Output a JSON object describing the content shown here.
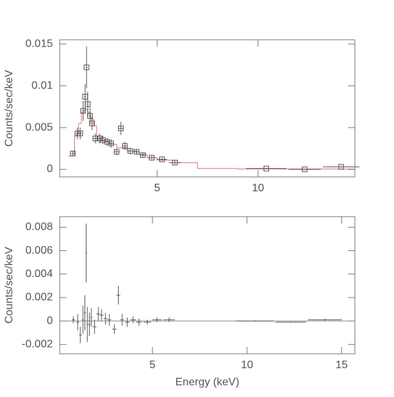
{
  "chart_data": [
    {
      "type": "errorbar",
      "ylabel": "Counts/sec/keV",
      "xlim": [
        0.17,
        14.8
      ],
      "ylim": [
        -0.0009,
        0.0155
      ],
      "xticks": [
        5,
        10
      ],
      "yticks": [
        0,
        0.005,
        0.01,
        0.015
      ],
      "marker": "square",
      "color": "#555555",
      "x": [
        0.82,
        1.05,
        1.19,
        1.33,
        1.43,
        1.5,
        1.56,
        1.67,
        1.77,
        1.94,
        2.14,
        2.31,
        2.52,
        2.72,
        2.99,
        3.2,
        3.4,
        3.67,
        3.98,
        4.29,
        4.73,
        5.24,
        5.88,
        10.41,
        12.31,
        14.12
      ],
      "xerr": [
        0.08,
        0.07,
        0.07,
        0.05,
        0.05,
        0.04,
        0.04,
        0.05,
        0.05,
        0.1,
        0.1,
        0.1,
        0.1,
        0.1,
        0.12,
        0.1,
        0.1,
        0.12,
        0.15,
        0.15,
        0.2,
        0.25,
        0.3,
        1.0,
        0.8,
        0.9
      ],
      "values": [
        0.0019,
        0.0043,
        0.0043,
        0.007,
        0.0087,
        0.0122,
        0.0078,
        0.0064,
        0.0055,
        0.0037,
        0.0037,
        0.0035,
        0.0033,
        0.0031,
        0.0021,
        0.0049,
        0.0028,
        0.0022,
        0.0021,
        0.0017,
        0.0014,
        0.0012,
        0.0008,
        0.0001,
        0.0,
        0.0003
      ],
      "errors": [
        0.0003,
        0.0007,
        0.0007,
        0.0012,
        0.0015,
        0.0025,
        0.0015,
        0.001,
        0.0008,
        0.0006,
        0.0006,
        0.0005,
        0.0005,
        0.0005,
        0.0004,
        0.0008,
        0.0005,
        0.0004,
        0.0003,
        0.0003,
        0.0002,
        0.0002,
        0.0002,
        5e-05,
        5e-05,
        0.0001
      ],
      "model": {
        "color": "#e07070",
        "edges": [
          0.6,
          0.9,
          1.0,
          1.1,
          1.25,
          1.4,
          1.55,
          1.7,
          1.85,
          2.0,
          2.3,
          2.6,
          3.0,
          3.5,
          4.0,
          4.5,
          5.0,
          6.0,
          7.0,
          9.0,
          14.8
        ],
        "values": [
          0.0016,
          0.004,
          0.0043,
          0.0055,
          0.0068,
          0.0072,
          0.0068,
          0.006,
          0.0052,
          0.004,
          0.0034,
          0.003,
          0.0026,
          0.0022,
          0.0018,
          0.0014,
          0.0011,
          0.0008,
          0.0001,
          5e-05
        ]
      }
    },
    {
      "type": "errorbar",
      "ylabel": "Counts/sec/keV",
      "xlabel": "Energy (keV)",
      "xlim": [
        0.1,
        15.7
      ],
      "ylim": [
        -0.0028,
        0.0089
      ],
      "xticks": [
        5,
        10,
        15
      ],
      "yticks": [
        -0.002,
        0,
        0.002,
        0.004,
        0.006,
        0.008
      ],
      "marker": "none",
      "color": "#555555",
      "hline": 0,
      "x": [
        0.82,
        1.05,
        1.19,
        1.33,
        1.43,
        1.5,
        1.56,
        1.67,
        1.77,
        1.94,
        2.14,
        2.31,
        2.52,
        2.72,
        2.99,
        3.2,
        3.4,
        3.67,
        3.98,
        4.29,
        4.73,
        5.24,
        5.88,
        10.41,
        12.31,
        14.12
      ],
      "xerr": [
        0.08,
        0.07,
        0.07,
        0.05,
        0.05,
        0.04,
        0.04,
        0.05,
        0.05,
        0.1,
        0.1,
        0.1,
        0.1,
        0.1,
        0.12,
        0.1,
        0.1,
        0.12,
        0.15,
        0.15,
        0.2,
        0.25,
        0.3,
        1.0,
        0.8,
        0.9
      ],
      "values": [
        0.0001,
        -0.0001,
        -0.0012,
        0.0001,
        0.0007,
        0.0058,
        -0.0003,
        -0.0003,
        0.0003,
        -0.0005,
        0.0006,
        0.0005,
        0.0002,
        0.0001,
        -0.0007,
        0.0022,
        0.0001,
        -0.0001,
        0.0001,
        -0.0001,
        -0.0001,
        0.0001,
        0.0001,
        0.0,
        -0.0001,
        0.0001
      ],
      "errors": [
        0.0003,
        0.0007,
        0.0007,
        0.0012,
        0.0015,
        0.0025,
        0.0015,
        0.001,
        0.0008,
        0.0006,
        0.0006,
        0.0005,
        0.0005,
        0.0005,
        0.0004,
        0.0008,
        0.0005,
        0.0004,
        0.0003,
        0.0003,
        0.0002,
        0.0002,
        0.0002,
        5e-05,
        5e-05,
        0.0001
      ]
    }
  ]
}
